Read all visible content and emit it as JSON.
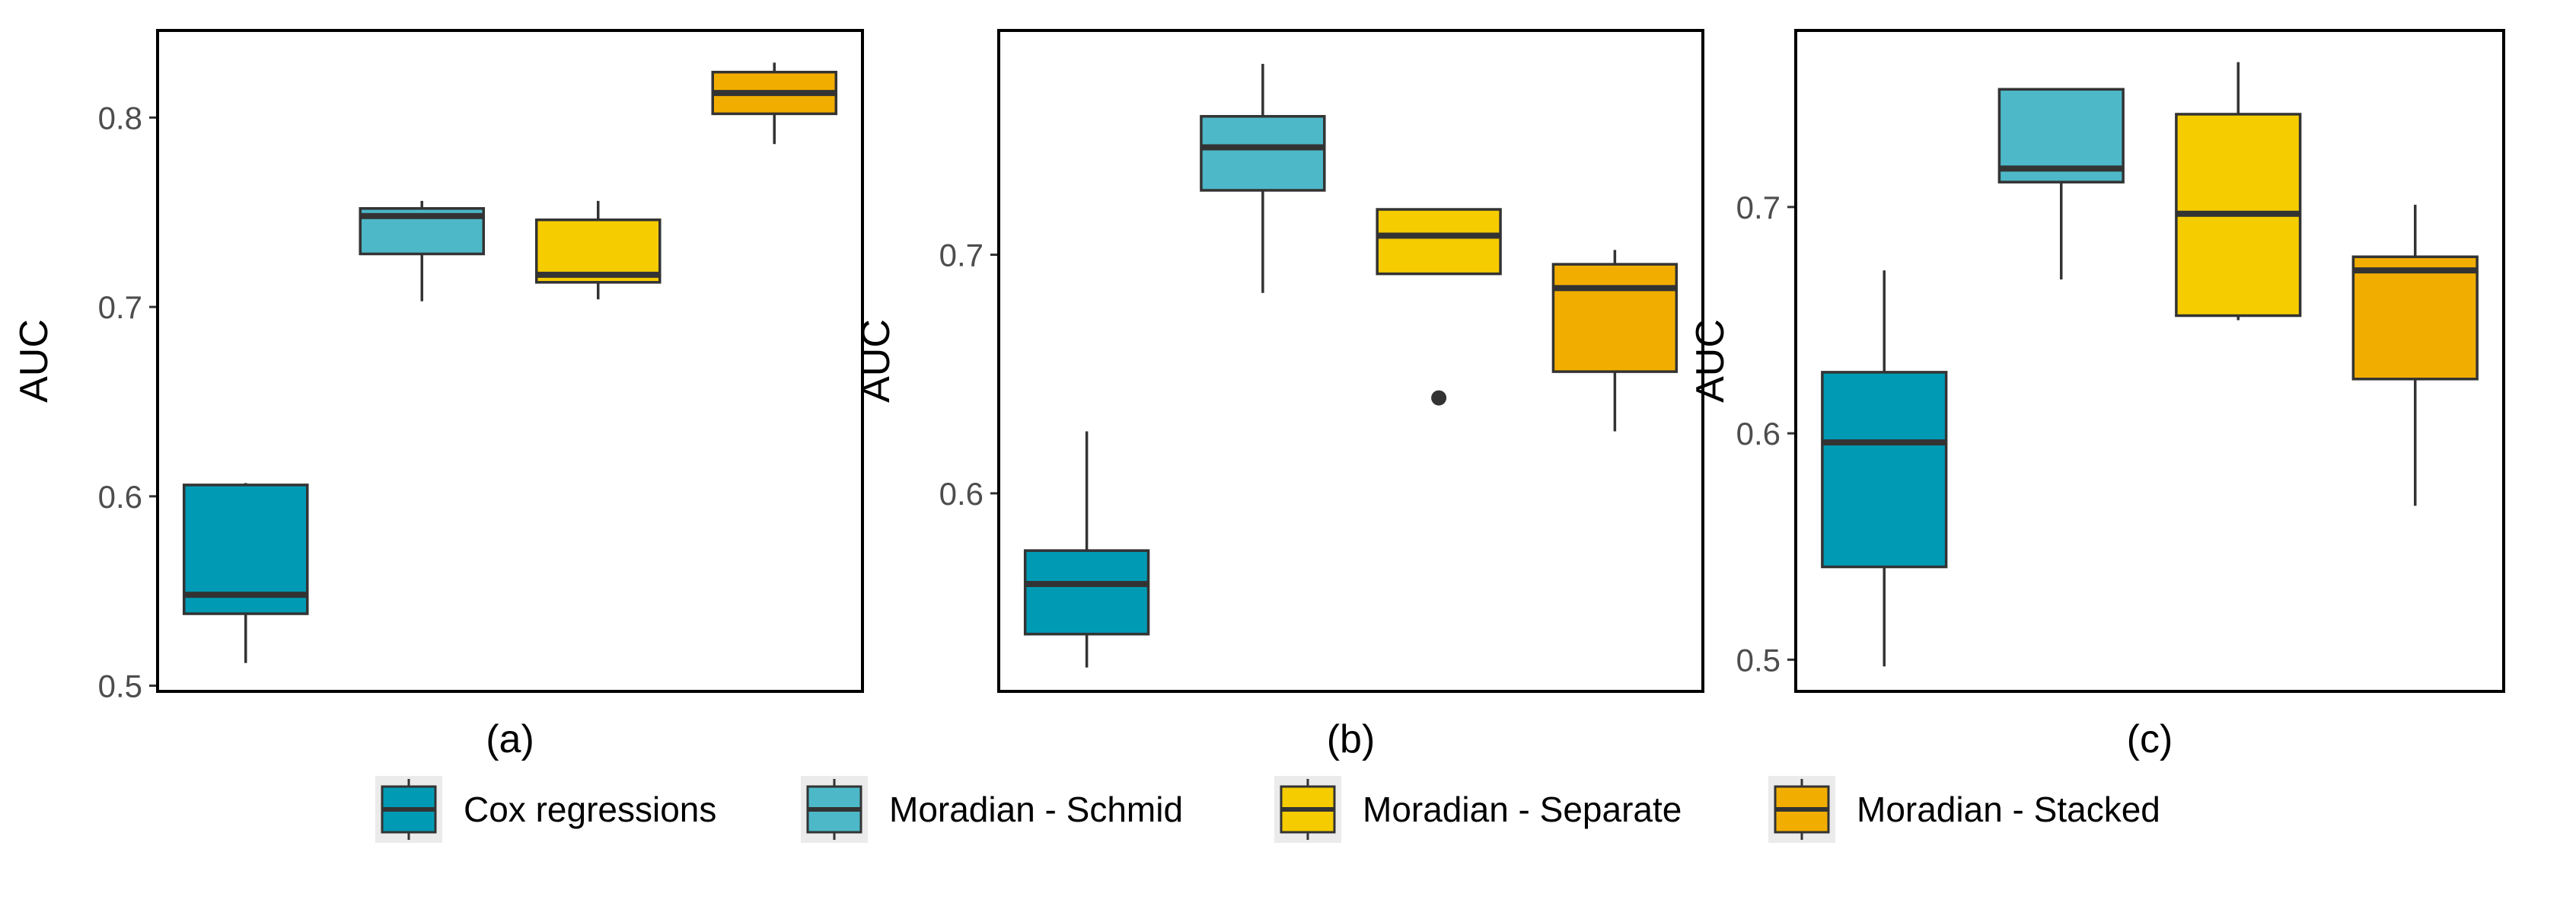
{
  "chart_data": [
    {
      "type": "boxplot",
      "panel_label": "(a)",
      "ylabel": "AUC",
      "xlabel": "(a)",
      "ylim": [
        0.497,
        0.846
      ],
      "yticks": [
        0.5,
        0.6,
        0.7,
        0.8
      ],
      "ytick_labels": [
        "0.5",
        "0.6",
        "0.7",
        "0.8"
      ],
      "series": [
        {
          "name": "Cox regressions",
          "color": "#009AB4",
          "min": 0.512,
          "q1": 0.538,
          "median": 0.548,
          "q3": 0.606,
          "max": 0.607,
          "outliers": []
        },
        {
          "name": "Moradian - Schmid",
          "color": "#4DB8C8",
          "min": 0.703,
          "q1": 0.728,
          "median": 0.748,
          "q3": 0.752,
          "max": 0.756,
          "outliers": []
        },
        {
          "name": "Moradian - Separate",
          "color": "#F5CC00",
          "min": 0.704,
          "q1": 0.713,
          "median": 0.717,
          "q3": 0.746,
          "max": 0.756,
          "outliers": []
        },
        {
          "name": "Moradian - Stacked",
          "color": "#F2AE00",
          "min": 0.786,
          "q1": 0.802,
          "median": 0.813,
          "q3": 0.824,
          "max": 0.829,
          "outliers": []
        }
      ]
    },
    {
      "type": "boxplot",
      "panel_label": "(b)",
      "ylabel": "AUC",
      "xlabel": "(b)",
      "ylim": [
        0.517,
        0.794
      ],
      "yticks": [
        0.6,
        0.7
      ],
      "ytick_labels": [
        "0.6",
        "0.7"
      ],
      "series": [
        {
          "name": "Cox regressions",
          "color": "#009AB4",
          "min": 0.527,
          "q1": 0.541,
          "median": 0.562,
          "q3": 0.576,
          "max": 0.626,
          "outliers": []
        },
        {
          "name": "Moradian - Schmid",
          "color": "#4DB8C8",
          "min": 0.684,
          "q1": 0.727,
          "median": 0.745,
          "q3": 0.758,
          "max": 0.78,
          "outliers": []
        },
        {
          "name": "Moradian - Separate",
          "color": "#F5CC00",
          "min": 0.692,
          "q1": 0.692,
          "median": 0.708,
          "q3": 0.719,
          "max": 0.719,
          "outliers": [
            0.64
          ]
        },
        {
          "name": "Moradian - Stacked",
          "color": "#F2AE00",
          "min": 0.626,
          "q1": 0.651,
          "median": 0.686,
          "q3": 0.696,
          "max": 0.702,
          "outliers": []
        }
      ]
    },
    {
      "type": "boxplot",
      "panel_label": "(c)",
      "ylabel": "AUC",
      "xlabel": "(c)",
      "ylim": [
        0.486,
        0.778
      ],
      "yticks": [
        0.5,
        0.6,
        0.7
      ],
      "ytick_labels": [
        "0.5",
        "0.6",
        "0.7"
      ],
      "series": [
        {
          "name": "Cox regressions",
          "color": "#009AB4",
          "min": 0.497,
          "q1": 0.541,
          "median": 0.596,
          "q3": 0.627,
          "max": 0.672,
          "outliers": []
        },
        {
          "name": "Moradian - Schmid",
          "color": "#4DB8C8",
          "min": 0.668,
          "q1": 0.711,
          "median": 0.717,
          "q3": 0.752,
          "max": 0.752,
          "outliers": []
        },
        {
          "name": "Moradian - Separate",
          "color": "#F5CC00",
          "min": 0.65,
          "q1": 0.652,
          "median": 0.697,
          "q3": 0.741,
          "max": 0.764,
          "outliers": []
        },
        {
          "name": "Moradian - Stacked",
          "color": "#F2AE00",
          "min": 0.568,
          "q1": 0.624,
          "median": 0.672,
          "q3": 0.678,
          "max": 0.701,
          "outliers": []
        }
      ]
    }
  ],
  "legend": {
    "items": [
      {
        "label": "Cox regressions",
        "color": "#009AB4"
      },
      {
        "label": "Moradian - Schmid",
        "color": "#4DB8C8"
      },
      {
        "label": "Moradian - Separate",
        "color": "#F5CC00"
      },
      {
        "label": "Moradian - Stacked",
        "color": "#F2AE00"
      }
    ],
    "position": "bottom"
  },
  "colors": {
    "panel_border": "#000000",
    "panel_background": "#ffffff",
    "box_outline": "#333333",
    "tick_label": "#4d4d4d",
    "legend_key_background": "#ebebeb"
  }
}
